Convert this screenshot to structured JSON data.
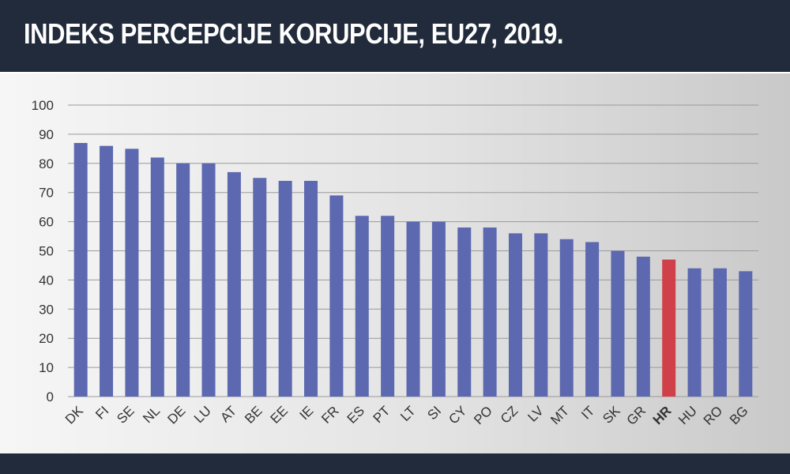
{
  "header": {
    "title": "INDEKS PERCEPCIJE KORUPCIJE, EU27, 2019."
  },
  "colors": {
    "header_bg": "#222b3b",
    "bar": "#5c68b0",
    "highlight_bar": "#cf4049",
    "grid": "#9a9a9a"
  },
  "chart_data": {
    "type": "bar",
    "title": "INDEKS PERCEPCIJE KORUPCIJE, EU27, 2019.",
    "xlabel": "",
    "ylabel": "",
    "ylim": [
      0,
      100
    ],
    "yticks": [
      0,
      10,
      20,
      30,
      40,
      50,
      60,
      70,
      80,
      90,
      100
    ],
    "grid": true,
    "legend": "none",
    "categories": [
      "DK",
      "FI",
      "SE",
      "NL",
      "DE",
      "LU",
      "AT",
      "BE",
      "EE",
      "IE",
      "FR",
      "ES",
      "PT",
      "LT",
      "SI",
      "CY",
      "PO",
      "CZ",
      "LV",
      "MT",
      "IT",
      "SK",
      "GR",
      "HR",
      "HU",
      "RO",
      "BG"
    ],
    "values": [
      87,
      86,
      85,
      82,
      80,
      80,
      77,
      75,
      74,
      74,
      69,
      62,
      62,
      60,
      60,
      58,
      58,
      56,
      56,
      54,
      53,
      50,
      48,
      47,
      44,
      44,
      43
    ],
    "highlight": "HR"
  }
}
